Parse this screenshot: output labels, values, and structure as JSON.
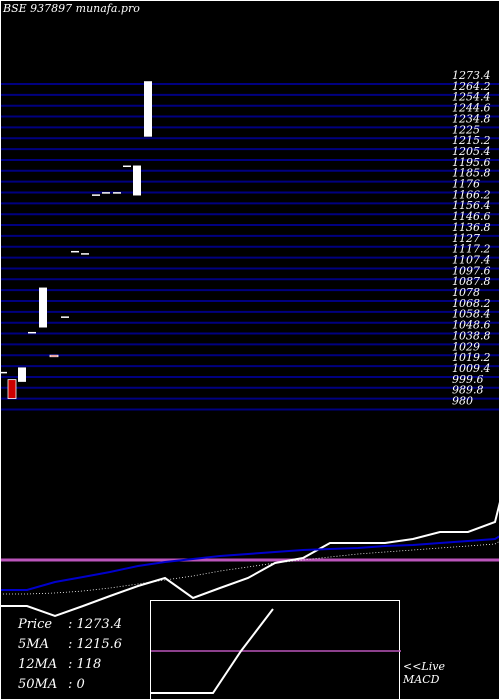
{
  "header": {
    "title": "BSE 937897 munafa.pro"
  },
  "chart_data": [
    {
      "type": "candlestick",
      "y_ticks": [
        "1273.4",
        "1264.2",
        "1254.4",
        "1244.6",
        "1234.8",
        "1225",
        "1215.2",
        "1205.4",
        "1195.6",
        "1185.8",
        "1176",
        "1166.2",
        "1156.4",
        "1146.6",
        "1136.8",
        "1127",
        "1117.2",
        "1107.4",
        "1097.6",
        "1087.8",
        "1078",
        "1068.2",
        "1058.4",
        "1048.6",
        "1038.8",
        "1029",
        "1019.2",
        "1009.4",
        "999.6",
        "989.8",
        "980"
      ],
      "ylim": [
        980,
        1273.4
      ],
      "candles": [
        {
          "o": 1004,
          "c": 1004,
          "h": 1004,
          "l": 1004,
          "color": "white"
        },
        {
          "o": 980,
          "c": 997,
          "h": 997,
          "l": 980,
          "color": "red"
        },
        {
          "o": 995,
          "c": 1008,
          "h": 1008,
          "l": 995,
          "color": "white"
        },
        {
          "o": 1040,
          "c": 1040,
          "h": 1040,
          "l": 1040,
          "color": "white"
        },
        {
          "o": 1044,
          "c": 1080,
          "h": 1080,
          "l": 1044,
          "color": "white"
        },
        {
          "o": 1019,
          "c": 1019,
          "h": 1019,
          "l": 1019,
          "color": "red"
        },
        {
          "o": 1054,
          "c": 1054,
          "h": 1054,
          "l": 1054,
          "color": "white"
        },
        {
          "o": 1113,
          "c": 1113,
          "h": 1113,
          "l": 1113,
          "color": "white"
        },
        {
          "o": 1111,
          "c": 1111,
          "h": 1111,
          "l": 1111,
          "color": "white"
        },
        {
          "o": 1164,
          "c": 1164,
          "h": 1164,
          "l": 1164,
          "color": "white"
        },
        {
          "o": 1166,
          "c": 1166,
          "h": 1166,
          "l": 1166,
          "color": "white"
        },
        {
          "o": 1166,
          "c": 1166,
          "h": 1166,
          "l": 1166,
          "color": "white"
        },
        {
          "o": 1190,
          "c": 1190,
          "h": 1190,
          "l": 1190,
          "color": "white"
        },
        {
          "o": 1163,
          "c": 1190,
          "h": 1190,
          "l": 1163,
          "color": "white"
        },
        {
          "o": 1216,
          "c": 1266,
          "h": 1266,
          "l": 1216,
          "color": "white"
        }
      ]
    },
    {
      "type": "line",
      "name": "price-ma",
      "series": [
        {
          "role": "price",
          "color": "#ffffff",
          "values": [
            606,
            606,
            616,
            606,
            596,
            586,
            578,
            598,
            588,
            578,
            563,
            558,
            543,
            543,
            543,
            539,
            532,
            532,
            522,
            502
          ]
        },
        {
          "role": "ma-slow",
          "color": "#0000cc",
          "values": [
            590,
            590,
            582,
            577,
            572,
            566,
            562,
            559,
            556,
            554,
            552,
            550,
            549,
            548,
            546,
            545,
            543,
            541,
            539,
            536
          ]
        },
        {
          "role": "ma-long",
          "color": "#ffffff",
          "dotted": true,
          "values": [
            594,
            594,
            593,
            591,
            588,
            584,
            580,
            576,
            571,
            567,
            563,
            560,
            557,
            554,
            552,
            550,
            548,
            546,
            544,
            541
          ]
        }
      ],
      "reference_line": {
        "color": "#bb55bb",
        "level": 560
      }
    },
    {
      "type": "line",
      "name": "MACD",
      "values": [
        692,
        692,
        692,
        650,
        608
      ],
      "reference_line": {
        "color": "#bb55bb",
        "level": 650
      }
    }
  ],
  "info": {
    "price_label": "Price",
    "price_value": ": 1273.4",
    "ma5_label": "5MA",
    "ma5_value": ": 1215.6",
    "ma12_label": "12MA",
    "ma12_value": ": 118",
    "ma50_label": "50MA",
    "ma50_value": ": 0"
  },
  "macd_label": {
    "line1": "<<Live",
    "line2": "MACD"
  },
  "colors": {
    "background": "#000000",
    "grid": "#000080",
    "candle_up": "#ffffff",
    "candle_down": "#cc0000",
    "ma_blue": "#0000cc",
    "reference": "#bb55bb"
  }
}
